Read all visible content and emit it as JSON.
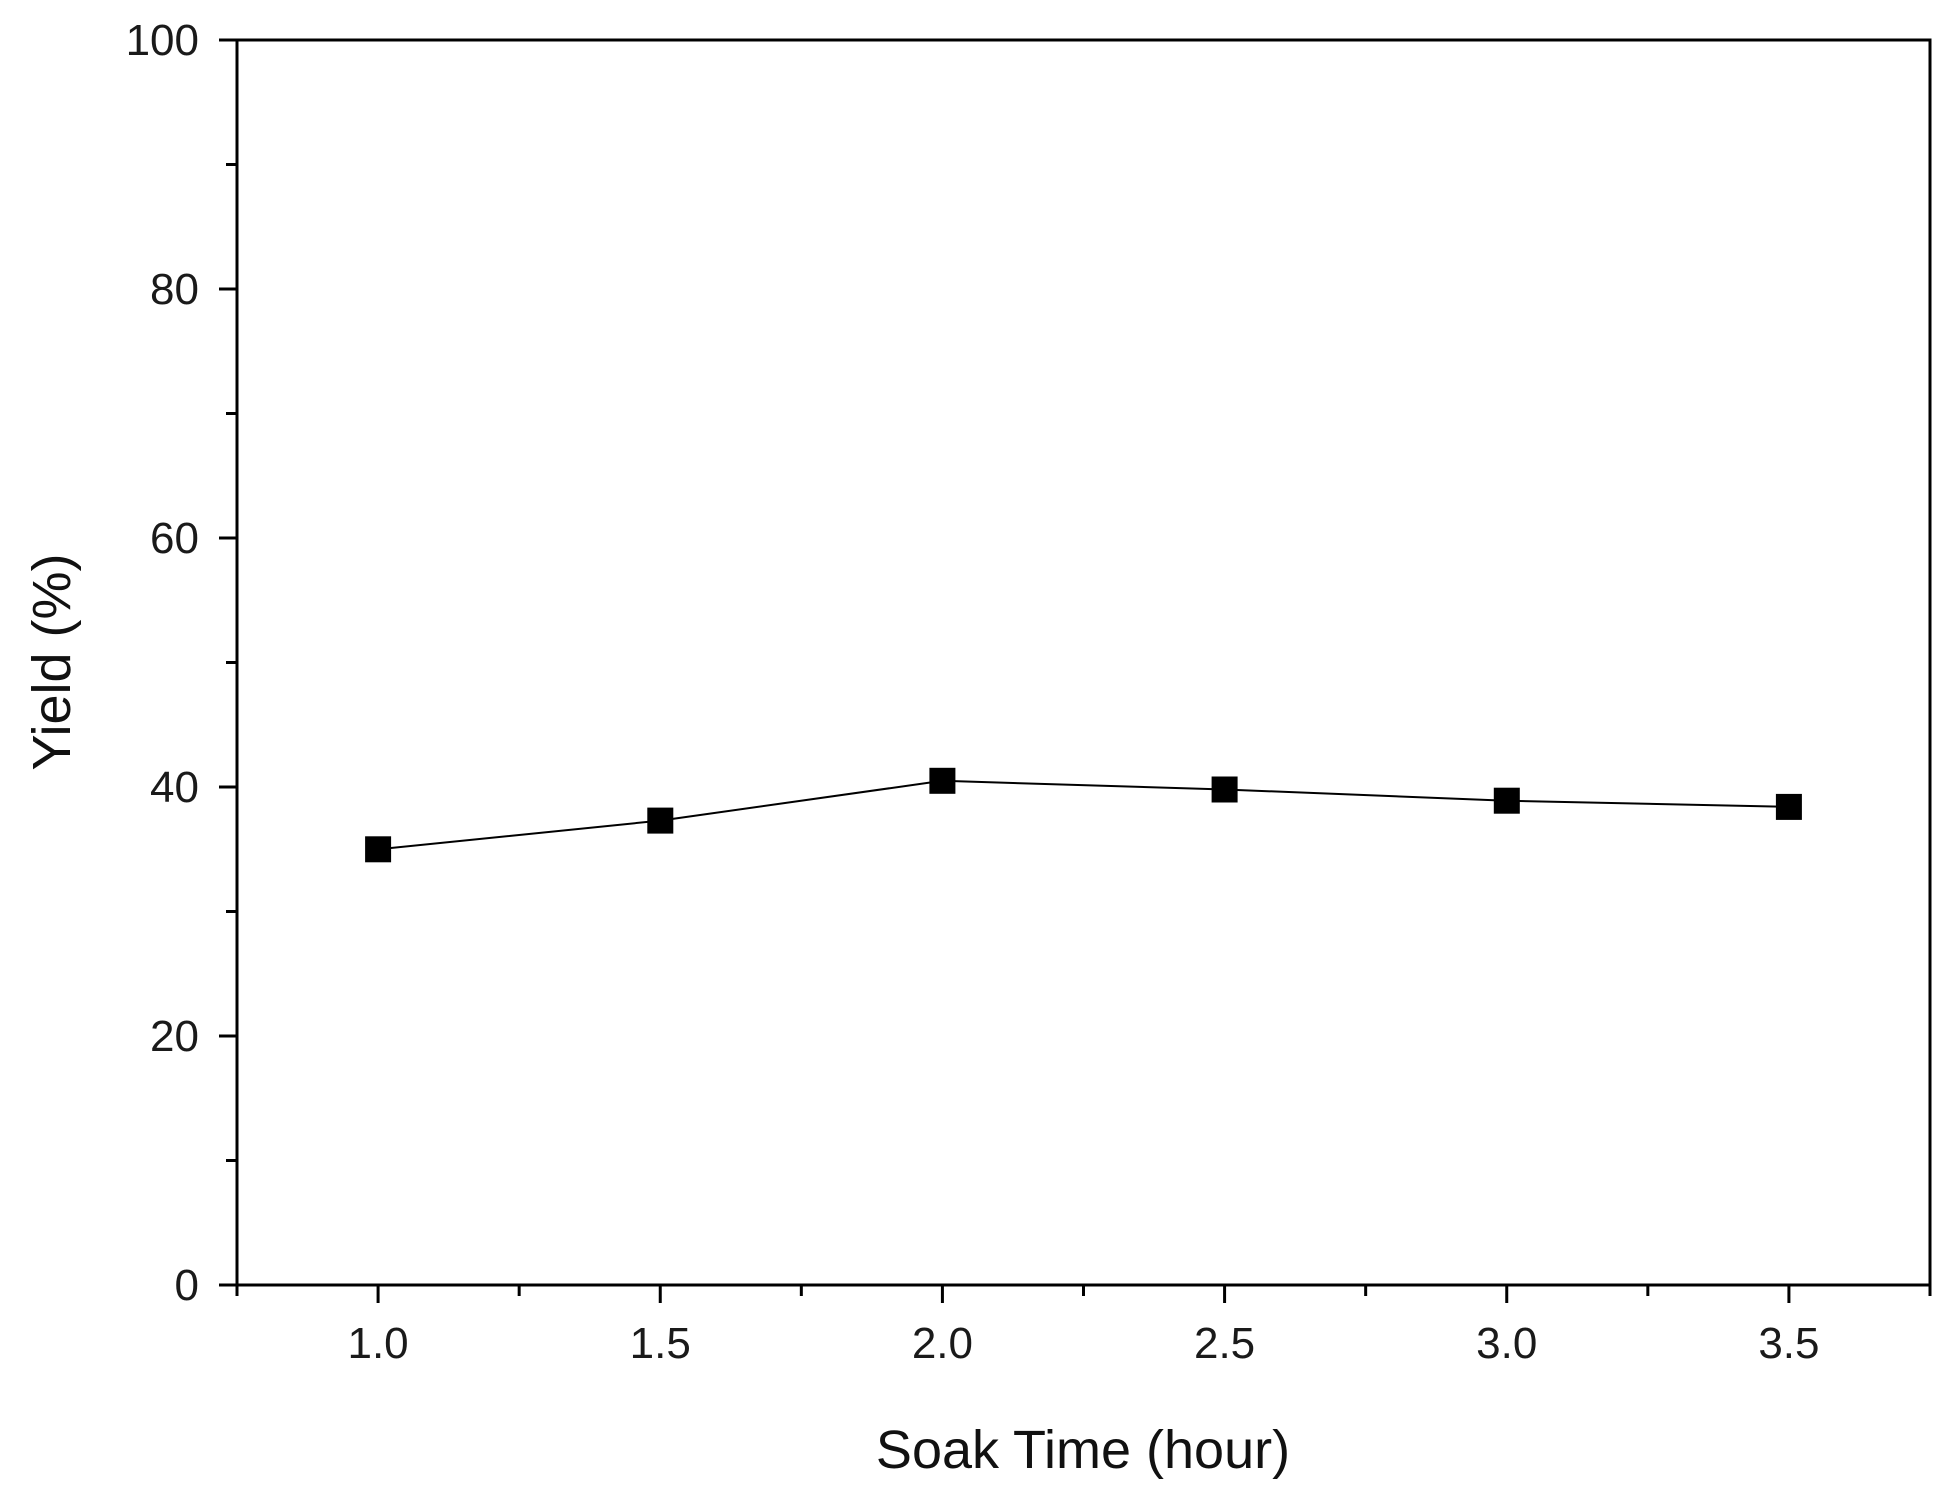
{
  "chart_data": {
    "type": "line",
    "title": "",
    "xlabel": "Soak Time (hour)",
    "ylabel": "Yield (%)",
    "xlim": [
      0.75,
      3.75
    ],
    "ylim": [
      0,
      100
    ],
    "x_ticks": [
      1.0,
      1.5,
      2.0,
      2.5,
      3.0,
      3.5
    ],
    "x_tick_labels": [
      "1.0",
      "1.5",
      "2.0",
      "2.5",
      "3.0",
      "3.5"
    ],
    "x_minor_ticks": [
      0.75,
      1.25,
      1.75,
      2.25,
      2.75,
      3.25,
      3.75
    ],
    "y_ticks": [
      0,
      20,
      40,
      60,
      80,
      100
    ],
    "y_tick_labels": [
      "0",
      "20",
      "40",
      "60",
      "80",
      "100"
    ],
    "y_minor_ticks": [
      10,
      30,
      50,
      70,
      90
    ],
    "grid": false,
    "legend": "none",
    "marker": "square",
    "colors": {
      "line": "#000000",
      "marker": "#000000",
      "axis": "#000000"
    },
    "series": [
      {
        "x": [
          1.0,
          1.5,
          2.0,
          2.5,
          3.0,
          3.5
        ],
        "values": [
          35.0,
          37.3,
          40.5,
          39.8,
          38.9,
          38.4
        ]
      }
    ]
  }
}
